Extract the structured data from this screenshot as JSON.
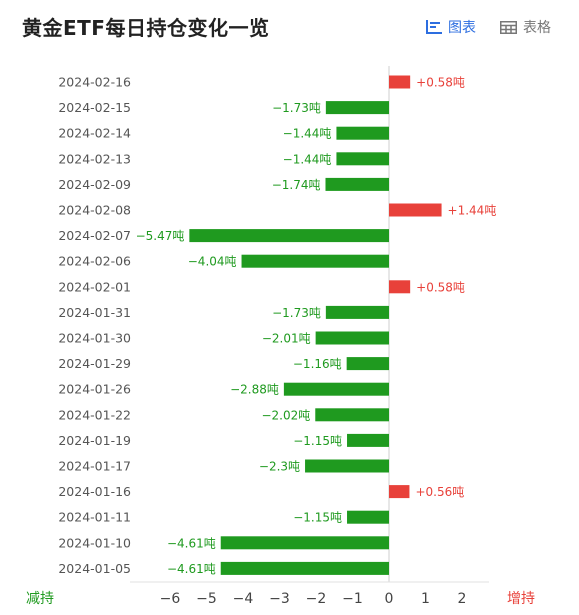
{
  "header": {
    "title": "黄金ETF每日持仓变化一览",
    "chart_toggle_label": "图表",
    "table_toggle_label": "表格"
  },
  "colors": {
    "negative": "#1f9a1f",
    "positive": "#e8413a",
    "active_toggle": "#2d6ee0"
  },
  "chart_data": {
    "type": "bar",
    "orientation": "horizontal",
    "categories": [
      "2024-02-16",
      "2024-02-15",
      "2024-02-14",
      "2024-02-13",
      "2024-02-09",
      "2024-02-08",
      "2024-02-07",
      "2024-02-06",
      "2024-02-01",
      "2024-01-31",
      "2024-01-30",
      "2024-01-29",
      "2024-01-26",
      "2024-01-22",
      "2024-01-19",
      "2024-01-17",
      "2024-01-16",
      "2024-01-11",
      "2024-01-10",
      "2024-01-05"
    ],
    "values": [
      0.58,
      -1.73,
      -1.44,
      -1.44,
      -1.74,
      1.44,
      -5.47,
      -4.04,
      0.58,
      -1.73,
      -2.01,
      -1.16,
      -2.88,
      -2.02,
      -1.15,
      -2.3,
      0.56,
      -1.15,
      -4.61,
      -4.61
    ],
    "value_labels": [
      "+0.58吨",
      "−1.73吨",
      "−1.44吨",
      "−1.44吨",
      "−1.74吨",
      "+1.44吨",
      "−5.47吨",
      "−4.04吨",
      "+0.58吨",
      "−1.73吨",
      "−2.01吨",
      "−1.16吨",
      "−2.88吨",
      "−2.02吨",
      "−1.15吨",
      "−2.3吨",
      "+0.56吨",
      "−1.15吨",
      "−4.61吨",
      "−4.61吨"
    ],
    "xlim": [
      -6,
      2
    ],
    "x_ticks": [
      -6,
      -5,
      -4,
      -3,
      -2,
      -1,
      0,
      1,
      2
    ],
    "x_tick_labels": [
      "−6",
      "−5",
      "−4",
      "−3",
      "−2",
      "−1",
      "0",
      "1",
      "2"
    ],
    "left_axis_label": "减持",
    "right_axis_label": "增持",
    "grid": false
  }
}
